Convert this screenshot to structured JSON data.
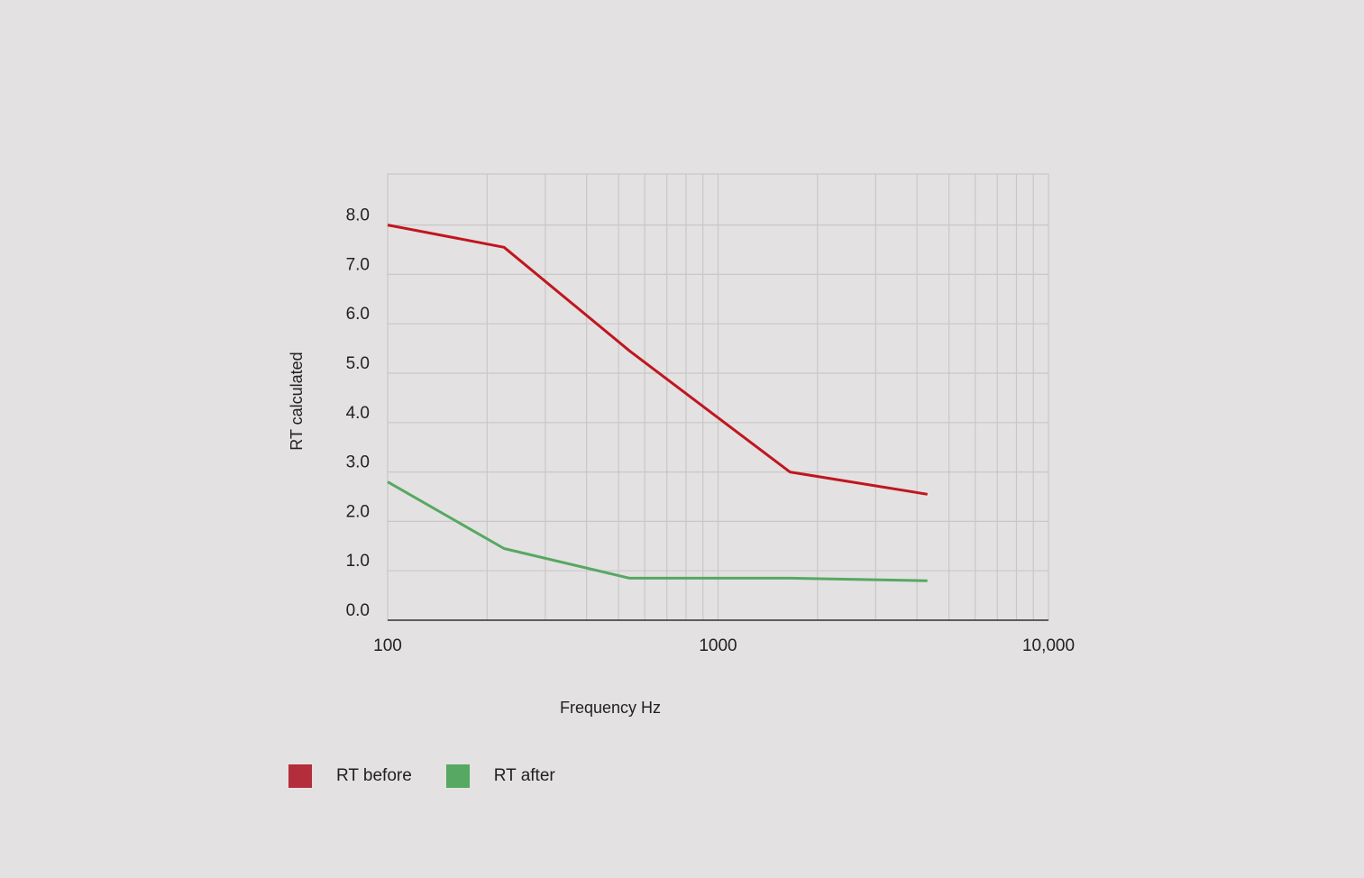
{
  "chart_data": {
    "type": "line",
    "xlabel": "Frequency Hz",
    "ylabel": "RT calculated",
    "xscale": "log",
    "xlim": [
      100,
      10000
    ],
    "ylim": [
      0,
      9
    ],
    "x_ticks": [
      "100",
      "1000",
      "10,000"
    ],
    "y_ticks": [
      "0.0",
      "1.0",
      "2.0",
      "3.0",
      "4.0",
      "5.0",
      "6.0",
      "7.0",
      "8.0"
    ],
    "grid": true,
    "legend_position": "bottom-left",
    "x": [
      100,
      225,
      540,
      1650,
      4300
    ],
    "series": [
      {
        "name": "RT before",
        "color": "#c0161f",
        "legend_color": "#b32d3c",
        "values": [
          8.0,
          7.55,
          5.45,
          3.0,
          2.55
        ]
      },
      {
        "name": "RT after",
        "color": "#56a862",
        "legend_color": "#56a862",
        "values": [
          2.8,
          1.45,
          0.85,
          0.85,
          0.8
        ]
      }
    ]
  }
}
